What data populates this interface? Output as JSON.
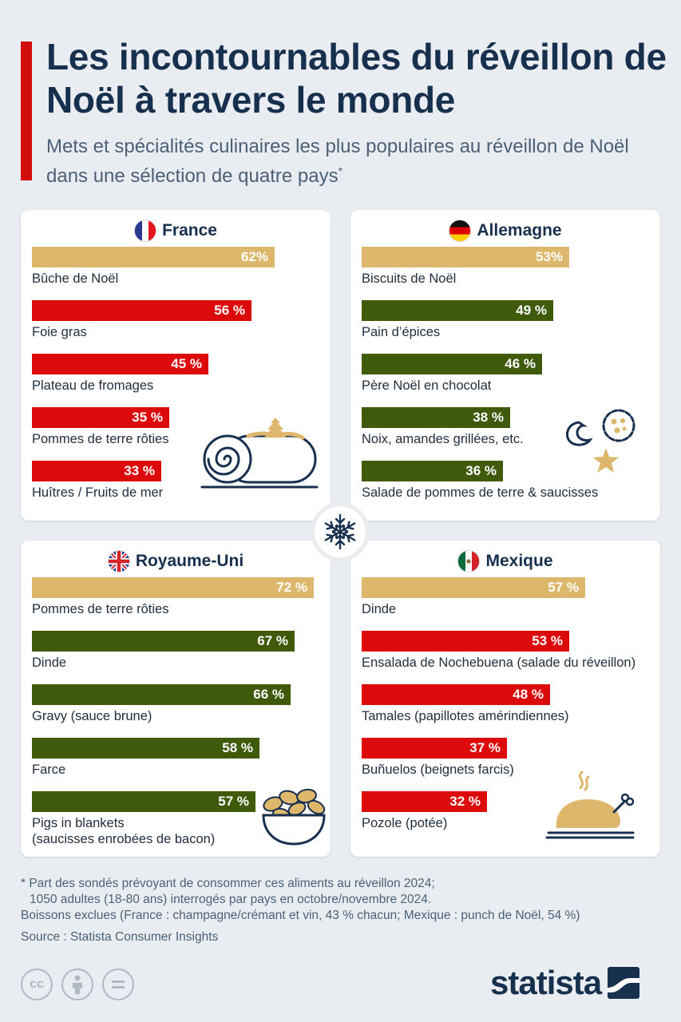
{
  "header": {
    "title": "Les incontournables du réveillon de Noël à travers le monde",
    "subtitle": "Mets et spécialités culinaires les plus populaires au réveillon de Noël dans une sélection de quatre pays",
    "subtitle_mark": "*"
  },
  "colors": {
    "gold": "#ddb76b",
    "red": "#dc0a0a",
    "green": "#3f5a0b",
    "navy": "#17304e",
    "accent": "#d30c0c"
  },
  "chart_data": [
    {
      "type": "bar",
      "country": "France",
      "flag_icon": "france-flag-icon",
      "categories": [
        "Bûche de Noël",
        "Foie gras",
        "Plateau de fromages",
        "Pommes de terre rôties",
        "Huîtres / Fruits de mer"
      ],
      "values": [
        62,
        56,
        45,
        35,
        33
      ],
      "value_labels": [
        "62%",
        "56 %",
        "45 %",
        "35 %",
        "33 %"
      ],
      "bar_colors": [
        "#ddb76b",
        "#dc0a0a",
        "#dc0a0a",
        "#dc0a0a",
        "#dc0a0a"
      ],
      "xlim": [
        0,
        75
      ],
      "illustration": "yule-log-icon"
    },
    {
      "type": "bar",
      "country": "Allemagne",
      "flag_icon": "germany-flag-icon",
      "categories": [
        "Biscuits de Noël",
        "Pain d’épices",
        "Père Noël en chocolat",
        "Noix, amandes grillées, etc.",
        "Salade de pommes de terre & saucisses"
      ],
      "values": [
        53,
        49,
        46,
        38,
        36
      ],
      "value_labels": [
        "53%",
        "49 %",
        "46 %",
        "38 %",
        "36 %"
      ],
      "bar_colors": [
        "#ddb76b",
        "#3f5a0b",
        "#3f5a0b",
        "#3f5a0b",
        "#3f5a0b"
      ],
      "xlim": [
        0,
        75
      ],
      "illustration": "cookies-icon"
    },
    {
      "type": "bar",
      "country": "Royaume-Uni",
      "flag_icon": "uk-flag-icon",
      "categories": [
        "Pommes de terre rôties",
        "Dinde",
        "Gravy (sauce brune)",
        "Farce",
        "Pigs in blankets\n(saucisses enrobées de bacon)"
      ],
      "values": [
        72,
        67,
        66,
        58,
        57
      ],
      "value_labels": [
        "72 %",
        "67 %",
        "66 %",
        "58 %",
        "57 %"
      ],
      "bar_colors": [
        "#ddb76b",
        "#3f5a0b",
        "#3f5a0b",
        "#3f5a0b",
        "#3f5a0b"
      ],
      "xlim": [
        0,
        75
      ],
      "illustration": "bowl-icon"
    },
    {
      "type": "bar",
      "country": "Mexique",
      "flag_icon": "mexico-flag-icon",
      "categories": [
        "Dinde",
        "Ensalada de Nochebuena (salade du réveillon)",
        "Tamales (papillotes amérindiennes)",
        "Buñuelos (beignets farcis)",
        "Pozole (potée)"
      ],
      "values": [
        57,
        53,
        48,
        37,
        32
      ],
      "value_labels": [
        "57 %",
        "53 %",
        "48 %",
        "37 %",
        "32 %"
      ],
      "bar_colors": [
        "#ddb76b",
        "#dc0a0a",
        "#dc0a0a",
        "#dc0a0a",
        "#dc0a0a"
      ],
      "xlim": [
        0,
        75
      ],
      "illustration": "roast-turkey-icon"
    }
  ],
  "footer": {
    "note_line1": "* Part des sondés prévoyant de consommer ces aliments au réveillon 2024;",
    "note_line2": "1050 adultes (18‑80 ans) interrogés par pays en octobre/novembre 2024.",
    "note_line3": "Boissons exclues (France : champagne/crémant et vin, 43 % chacun; Mexique : punch de Noël, 54 %)",
    "source": "Source : Statista Consumer Insights",
    "cc_label": "cc",
    "logo_text": "statista"
  }
}
